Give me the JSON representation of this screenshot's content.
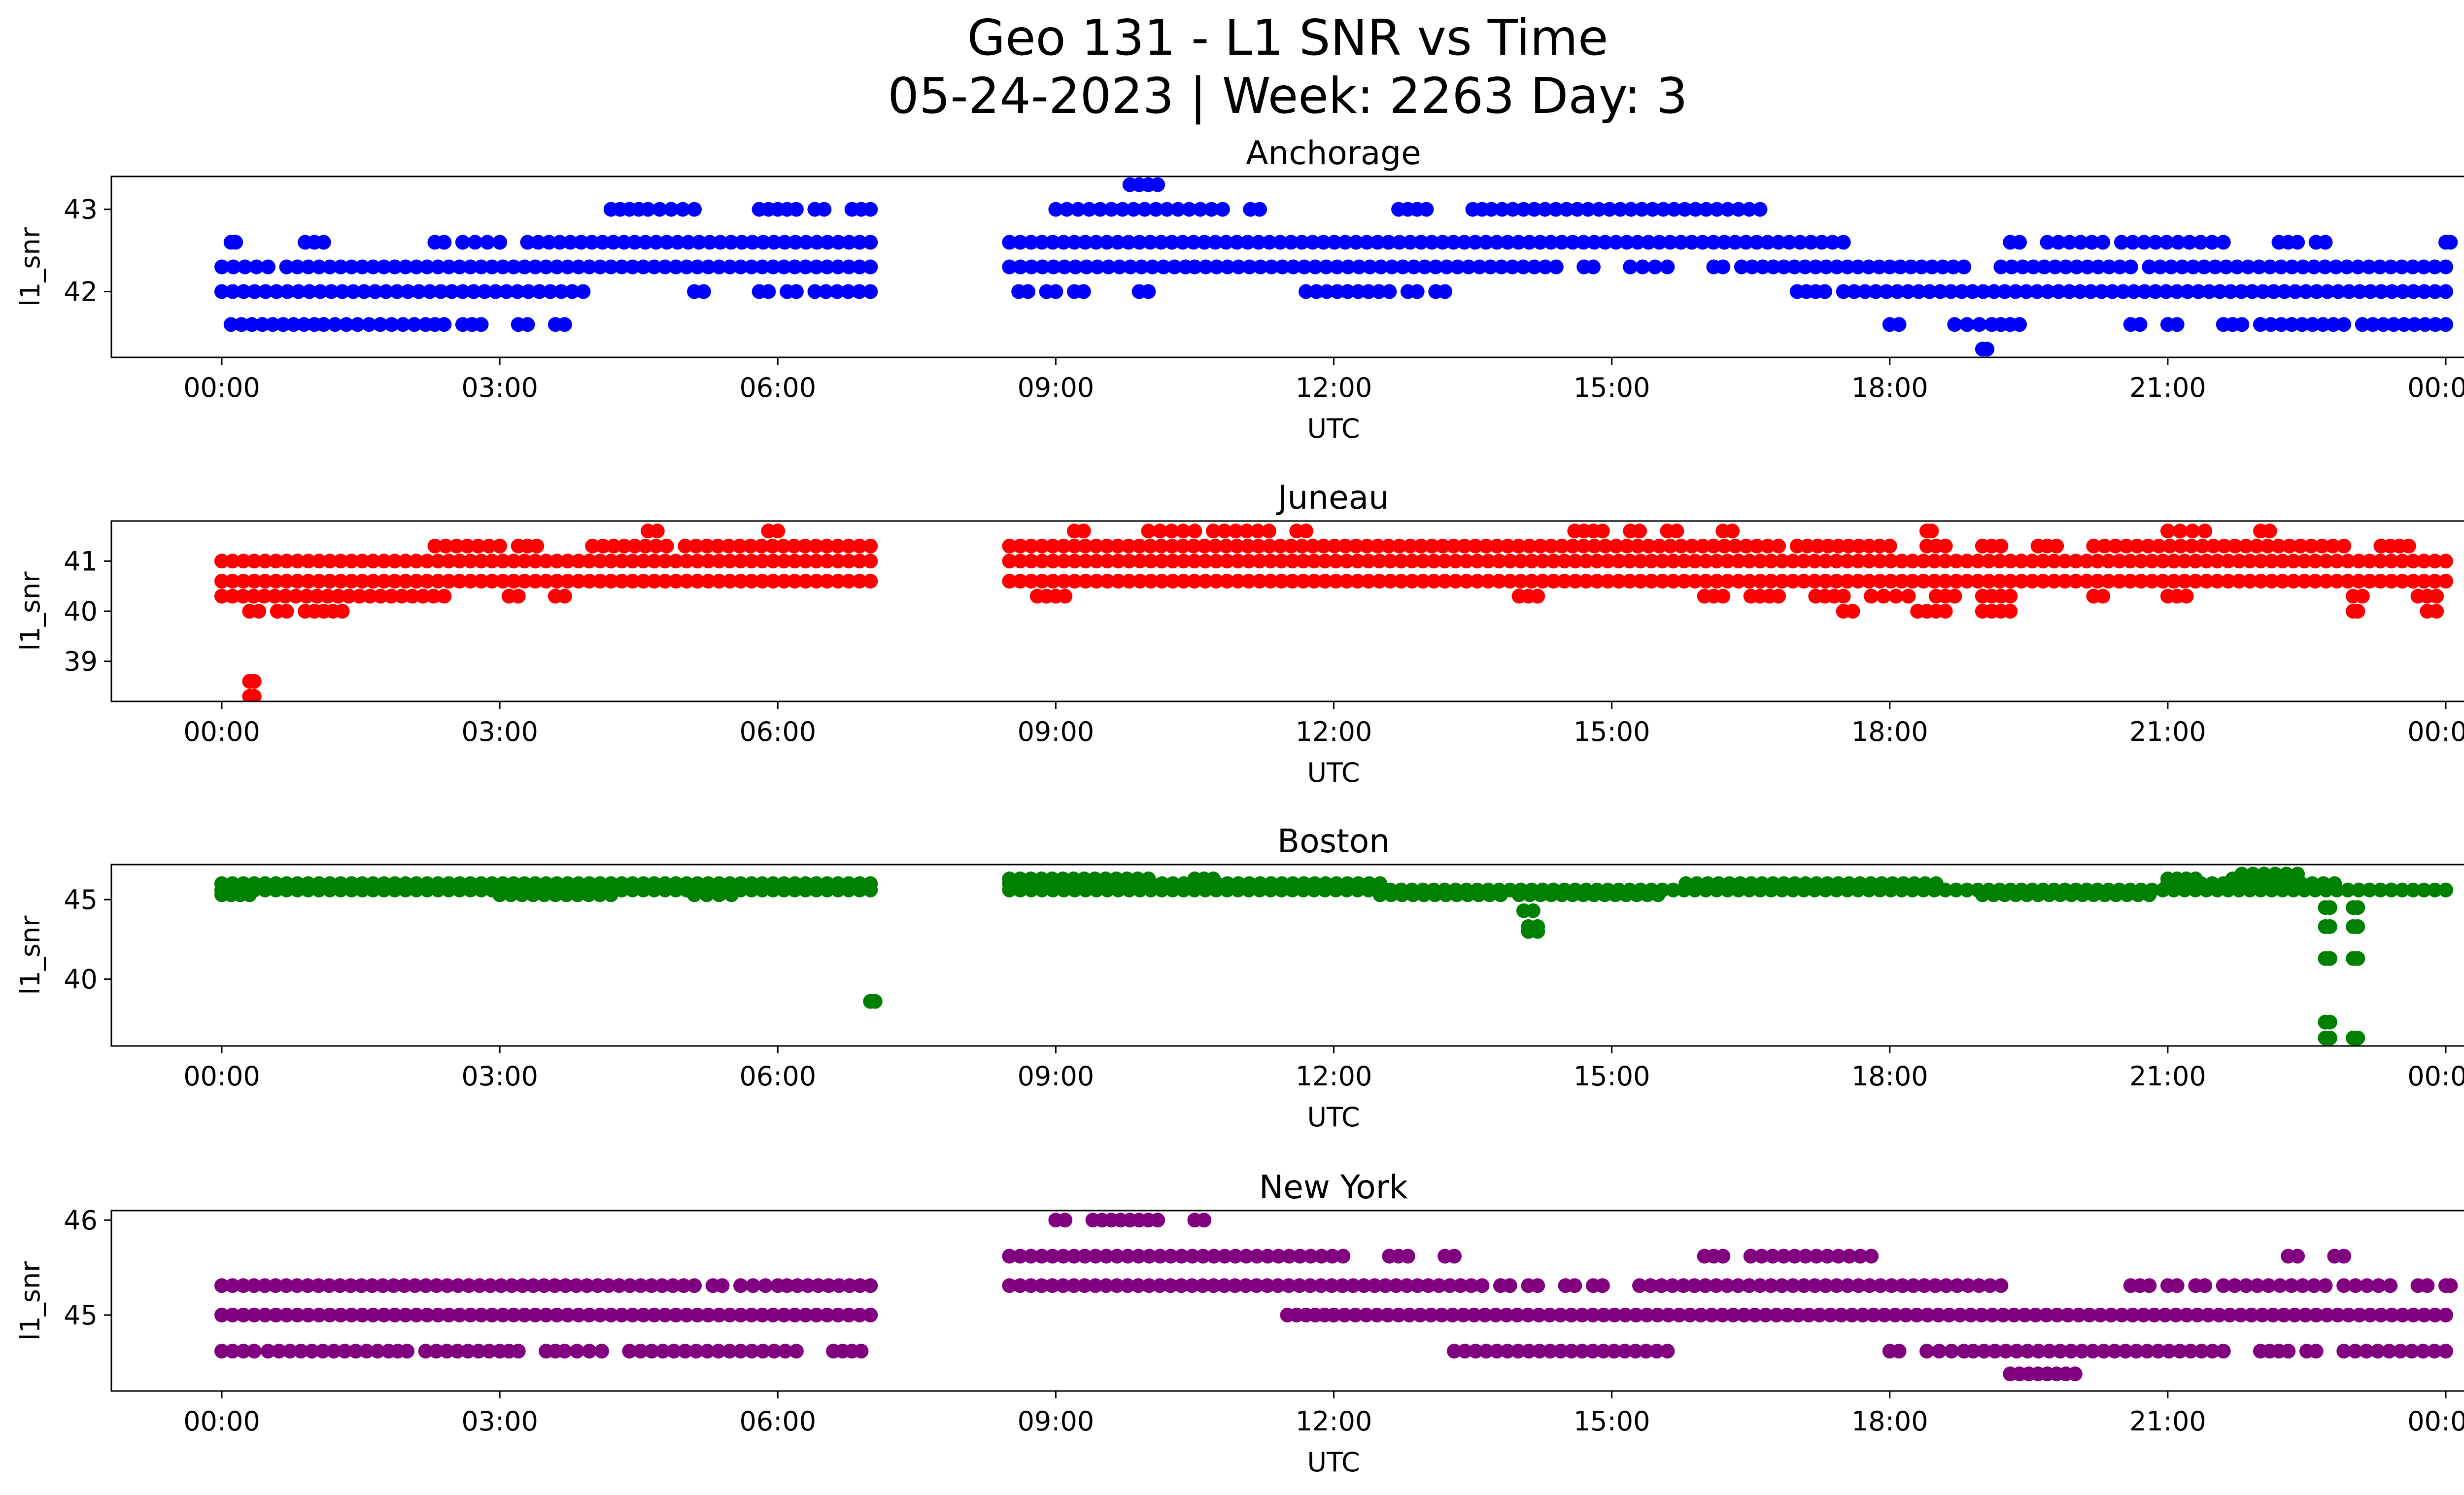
{
  "figure": {
    "title_line1": "Geo 131 - L1 SNR vs Time",
    "title_line2": "05-24-2023 | Week: 2263 Day: 3"
  },
  "chart_data": [
    {
      "type": "scatter",
      "title": "Anchorage",
      "xlabel": "UTC",
      "ylabel": "l1_snr",
      "color": "#0000ff",
      "xlim": [
        "00:00",
        "24:00"
      ],
      "ylim": [
        41.2,
        43.4
      ],
      "xticks": [
        "00:00",
        "03:00",
        "06:00",
        "09:00",
        "12:00",
        "15:00",
        "18:00",
        "21:00",
        "00:00"
      ],
      "yticks": [
        42,
        43
      ],
      "gap_hours": [
        7.1,
        8.5
      ],
      "bands": [
        {
          "y": 41.6,
          "segments": [
            [
              0.1,
              1.0
            ],
            [
              1.1,
              2.2
            ],
            [
              2.3,
              2.4
            ],
            [
              2.6,
              2.8
            ],
            [
              3.2,
              3.3
            ],
            [
              3.6,
              3.7
            ],
            [
              18.0,
              18.1
            ],
            [
              18.7,
              19.1
            ],
            [
              19.2,
              19.4
            ],
            [
              20.6,
              20.7
            ],
            [
              21.0,
              21.1
            ],
            [
              21.6,
              21.8
            ],
            [
              22.0,
              22.9
            ],
            [
              23.1,
              24.0
            ]
          ]
        },
        {
          "y": 42.0,
          "segments": [
            [
              0.0,
              3.9
            ],
            [
              5.1,
              5.2
            ],
            [
              5.8,
              5.9
            ],
            [
              6.1,
              6.2
            ],
            [
              6.4,
              7.0
            ],
            [
              8.6,
              8.7
            ],
            [
              8.9,
              9.0
            ],
            [
              9.2,
              9.3
            ],
            [
              9.9,
              10.0
            ],
            [
              11.7,
              12.6
            ],
            [
              12.8,
              12.9
            ],
            [
              13.1,
              13.2
            ],
            [
              17.0,
              17.3
            ],
            [
              17.5,
              24.0
            ]
          ]
        },
        {
          "y": 42.3,
          "segments": [
            [
              0.0,
              0.5
            ],
            [
              0.7,
              7.0
            ],
            [
              8.5,
              10.4
            ],
            [
              10.5,
              14.4
            ],
            [
              14.7,
              14.8
            ],
            [
              15.2,
              15.6
            ],
            [
              16.1,
              16.2
            ],
            [
              16.4,
              18.8
            ],
            [
              19.2,
              20.6
            ],
            [
              20.8,
              24.0
            ]
          ]
        },
        {
          "y": 42.6,
          "segments": [
            [
              0.1,
              0.15
            ],
            [
              0.9,
              1.1
            ],
            [
              2.3,
              2.4
            ],
            [
              2.6,
              3.0
            ],
            [
              3.3,
              7.0
            ],
            [
              8.5,
              17.5
            ],
            [
              19.3,
              19.4
            ],
            [
              19.7,
              20.3
            ],
            [
              20.5,
              21.6
            ],
            [
              22.2,
              22.4
            ],
            [
              22.6,
              22.7
            ],
            [
              24.0,
              24.05
            ]
          ]
        },
        {
          "y": 43.0,
          "segments": [
            [
              4.2,
              4.5
            ],
            [
              4.6,
              5.1
            ],
            [
              5.8,
              6.0
            ],
            [
              6.1,
              6.2
            ],
            [
              6.4,
              6.5
            ],
            [
              6.8,
              7.0
            ],
            [
              9.0,
              10.8
            ],
            [
              11.1,
              11.2
            ],
            [
              12.7,
              12.8
            ],
            [
              12.9,
              13.0
            ],
            [
              13.5,
              13.6
            ],
            [
              13.7,
              16.6
            ]
          ]
        },
        {
          "y": 43.3,
          "segments": [
            [
              9.8,
              9.9
            ],
            [
              10.0,
              10.1
            ]
          ]
        },
        {
          "y": 41.3,
          "segments": [
            [
              19.0,
              19.05
            ]
          ]
        }
      ]
    },
    {
      "type": "scatter",
      "title": "Juneau",
      "xlabel": "UTC",
      "ylabel": "l1_snr",
      "color": "#ff0000",
      "xlim": [
        "00:00",
        "24:00"
      ],
      "ylim": [
        38.2,
        41.8
      ],
      "xticks": [
        "00:00",
        "03:00",
        "06:00",
        "09:00",
        "12:00",
        "15:00",
        "18:00",
        "21:00",
        "00:00"
      ],
      "yticks": [
        39,
        40,
        41
      ],
      "gap_hours": [
        7.1,
        8.5
      ],
      "bands": [
        {
          "y": 40.3,
          "segments": [
            [
              0.0,
              2.4
            ],
            [
              3.1,
              3.2
            ],
            [
              3.6,
              3.7
            ],
            [
              8.8,
              8.9
            ],
            [
              9.0,
              9.1
            ],
            [
              14.0,
              14.2
            ],
            [
              16.0,
              16.2
            ],
            [
              16.5,
              16.8
            ],
            [
              17.2,
              17.5
            ],
            [
              17.8,
              18.2
            ],
            [
              18.5,
              18.7
            ],
            [
              19.0,
              19.3
            ],
            [
              20.2,
              20.3
            ],
            [
              21.0,
              21.2
            ],
            [
              23.0,
              23.1
            ],
            [
              23.7,
              23.9
            ]
          ]
        },
        {
          "y": 40.6,
          "segments": [
            [
              0.0,
              7.0
            ],
            [
              8.5,
              24.0
            ]
          ]
        },
        {
          "y": 41.0,
          "segments": [
            [
              0.0,
              7.0
            ],
            [
              8.5,
              24.0
            ]
          ]
        },
        {
          "y": 41.3,
          "segments": [
            [
              2.3,
              3.0
            ],
            [
              3.2,
              3.4
            ],
            [
              4.0,
              4.8
            ],
            [
              5.0,
              7.0
            ],
            [
              8.5,
              16.8
            ],
            [
              17.0,
              18.0
            ],
            [
              18.4,
              18.6
            ],
            [
              19.0,
              19.2
            ],
            [
              19.6,
              19.8
            ],
            [
              20.2,
              22.9
            ],
            [
              23.3,
              23.6
            ]
          ]
        },
        {
          "y": 41.6,
          "segments": [
            [
              4.6,
              4.7
            ],
            [
              5.9,
              6.0
            ],
            [
              9.2,
              9.3
            ],
            [
              10.0,
              10.5
            ],
            [
              10.7,
              11.3
            ],
            [
              11.6,
              11.7
            ],
            [
              14.6,
              14.9
            ],
            [
              15.2,
              15.3
            ],
            [
              15.6,
              15.7
            ],
            [
              16.2,
              16.3
            ],
            [
              18.4,
              18.45
            ],
            [
              21.0,
              21.4
            ],
            [
              22.0,
              22.1
            ]
          ]
        },
        {
          "y": 40.0,
          "segments": [
            [
              0.3,
              0.4
            ],
            [
              0.6,
              0.7
            ],
            [
              0.9,
              1.1
            ],
            [
              1.2,
              1.3
            ],
            [
              17.5,
              17.6
            ],
            [
              18.3,
              18.6
            ],
            [
              19.0,
              19.3
            ],
            [
              23.0,
              23.05
            ],
            [
              23.8,
              23.9
            ]
          ]
        },
        {
          "y": 38.6,
          "segments": [
            [
              0.3,
              0.35
            ]
          ]
        },
        {
          "y": 38.3,
          "segments": [
            [
              0.3,
              0.35
            ]
          ]
        }
      ]
    },
    {
      "type": "scatter",
      "title": "Boston",
      "xlabel": "UTC",
      "ylabel": "l1_snr",
      "color": "#008000",
      "xlim": [
        "00:00",
        "24:00"
      ],
      "ylim": [
        35.8,
        47.2
      ],
      "xticks": [
        "00:00",
        "03:00",
        "06:00",
        "09:00",
        "12:00",
        "15:00",
        "18:00",
        "21:00",
        "00:00"
      ],
      "yticks": [
        40,
        45
      ],
      "gap_hours": [
        7.1,
        8.5
      ],
      "bands": [
        {
          "y": 45.3,
          "segments": [
            [
              0.0,
              0.3
            ],
            [
              3.0,
              4.2
            ],
            [
              5.1,
              5.5
            ],
            [
              12.5,
              13.8
            ],
            [
              14.0,
              15.5
            ],
            [
              19.0,
              20.8
            ]
          ]
        },
        {
          "y": 45.6,
          "segments": [
            [
              0.0,
              7.0
            ],
            [
              8.5,
              24.0
            ]
          ]
        },
        {
          "y": 46.0,
          "segments": [
            [
              0.0,
              7.0
            ],
            [
              8.5,
              12.5
            ],
            [
              15.8,
              18.5
            ],
            [
              21.0,
              22.8
            ]
          ]
        },
        {
          "y": 46.3,
          "segments": [
            [
              8.5,
              10.0
            ],
            [
              10.5,
              10.7
            ],
            [
              21.0,
              21.3
            ],
            [
              21.7,
              22.4
            ]
          ]
        },
        {
          "y": 46.6,
          "segments": [
            [
              21.8,
              22.4
            ]
          ]
        },
        {
          "y": 44.3,
          "segments": [
            [
              14.05,
              14.15
            ]
          ]
        },
        {
          "y": 43.3,
          "segments": [
            [
              14.1,
              14.2
            ]
          ]
        },
        {
          "y": 43.0,
          "segments": [
            [
              14.1,
              14.2
            ]
          ]
        },
        {
          "y": 38.6,
          "segments": [
            [
              7.0,
              7.05
            ]
          ]
        },
        {
          "y": 44.5,
          "segments": [
            [
              22.7,
              22.75
            ],
            [
              23.0,
              23.05
            ]
          ]
        },
        {
          "y": 43.3,
          "segments": [
            [
              22.7,
              22.75
            ],
            [
              23.0,
              23.05
            ]
          ]
        },
        {
          "y": 41.3,
          "segments": [
            [
              22.7,
              22.75
            ],
            [
              23.0,
              23.05
            ]
          ]
        },
        {
          "y": 37.3,
          "segments": [
            [
              22.7,
              22.75
            ]
          ]
        },
        {
          "y": 36.3,
          "segments": [
            [
              22.7,
              22.75
            ],
            [
              23.0,
              23.05
            ]
          ]
        }
      ]
    },
    {
      "type": "scatter",
      "title": "New York",
      "xlabel": "UTC",
      "ylabel": "l1_snr",
      "color": "#800080",
      "xlim": [
        "00:00",
        "24:00"
      ],
      "ylim": [
        44.2,
        46.1
      ],
      "xticks": [
        "00:00",
        "03:00",
        "06:00",
        "09:00",
        "12:00",
        "15:00",
        "18:00",
        "21:00",
        "00:00"
      ],
      "yticks": [
        45,
        46
      ],
      "gap_hours": [
        7.1,
        8.5
      ],
      "bands": [
        {
          "y": 44.62,
          "segments": [
            [
              0.0,
              0.35
            ],
            [
              0.5,
              1.8
            ],
            [
              1.9,
              2.0
            ],
            [
              2.2,
              3.0
            ],
            [
              3.1,
              3.2
            ],
            [
              3.5,
              3.6
            ],
            [
              3.7,
              4.1
            ],
            [
              4.4,
              6.2
            ],
            [
              6.6,
              6.9
            ],
            [
              13.3,
              15.6
            ],
            [
              18.0,
              18.1
            ],
            [
              18.4,
              18.8
            ],
            [
              18.9,
              21.6
            ],
            [
              22.0,
              22.3
            ],
            [
              22.5,
              22.6
            ],
            [
              22.9,
              24.0
            ]
          ]
        },
        {
          "y": 45.0,
          "segments": [
            [
              0.0,
              7.0
            ],
            [
              11.5,
              11.7
            ],
            [
              11.8,
              12.0
            ],
            [
              12.0,
              24.0
            ]
          ]
        },
        {
          "y": 45.31,
          "segments": [
            [
              0.0,
              5.1
            ],
            [
              5.3,
              5.4
            ],
            [
              5.6,
              6.0
            ],
            [
              6.1,
              7.0
            ],
            [
              8.5,
              13.6
            ],
            [
              13.8,
              13.9
            ],
            [
              14.1,
              14.2
            ],
            [
              14.5,
              14.6
            ],
            [
              14.8,
              14.9
            ],
            [
              15.3,
              19.2
            ],
            [
              20.6,
              20.8
            ],
            [
              21.0,
              21.1
            ],
            [
              21.3,
              21.4
            ],
            [
              21.6,
              22.7
            ],
            [
              22.9,
              23.4
            ],
            [
              23.7,
              23.8
            ],
            [
              24.0,
              24.05
            ]
          ]
        },
        {
          "y": 45.62,
          "segments": [
            [
              8.5,
              12.1
            ],
            [
              12.6,
              12.8
            ],
            [
              13.2,
              13.3
            ],
            [
              16.0,
              16.2
            ],
            [
              16.5,
              17.8
            ],
            [
              22.3,
              22.4
            ],
            [
              22.8,
              22.9
            ]
          ]
        },
        {
          "y": 46.0,
          "segments": [
            [
              9.0,
              9.1
            ],
            [
              9.4,
              9.5
            ],
            [
              9.6,
              9.9
            ],
            [
              10.0,
              10.1
            ],
            [
              10.5,
              10.6
            ]
          ]
        },
        {
          "y": 44.38,
          "segments": [
            [
              19.3,
              19.4
            ],
            [
              19.5,
              19.6
            ],
            [
              19.7,
              19.8
            ],
            [
              19.9,
              20.0
            ]
          ]
        }
      ]
    }
  ]
}
